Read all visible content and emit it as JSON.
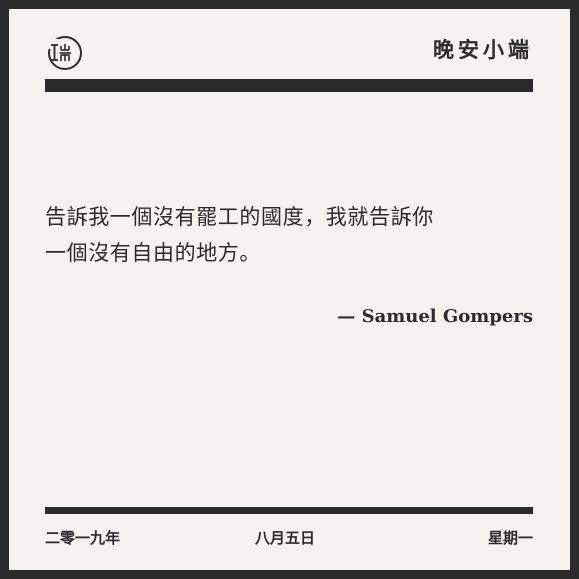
{
  "brand": "晚安小端",
  "quote": {
    "line1": "告訴我一個沒有罷工的國度，我就告訴你",
    "line2": "一個沒有自由的地方。"
  },
  "attribution": "— Samuel Gompers",
  "footer": {
    "year": "二零一九年",
    "date": "八月五日",
    "weekday": "星期一"
  },
  "logo": {
    "icon": "duan-seal-icon"
  }
}
